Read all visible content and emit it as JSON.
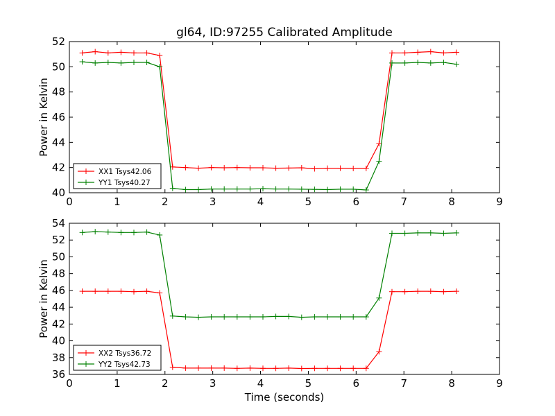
{
  "title": "gl64, ID:97255 Calibrated Amplitude",
  "chart_data": [
    {
      "type": "line",
      "title": "gl64, ID:97255 Calibrated Amplitude",
      "xlabel": "",
      "ylabel": "Power in Kelvin",
      "xlim": [
        0,
        9
      ],
      "ylim": [
        40,
        52
      ],
      "xticks": [
        "0",
        "1",
        "2",
        "3",
        "4",
        "5",
        "6",
        "7",
        "8",
        "9"
      ],
      "yticks": [
        "40",
        "42",
        "44",
        "46",
        "48",
        "50",
        "52"
      ],
      "grid": false,
      "legend_position": "lower-left",
      "x": [
        0.27,
        0.54,
        0.81,
        1.08,
        1.35,
        1.62,
        1.89,
        2.16,
        2.43,
        2.7,
        2.97,
        3.24,
        3.51,
        3.78,
        4.05,
        4.32,
        4.59,
        4.86,
        5.13,
        5.4,
        5.67,
        5.94,
        6.21,
        6.48,
        6.75,
        7.02,
        7.29,
        7.56,
        7.83,
        8.1
      ],
      "series": [
        {
          "name": "XX1 Tsys42.06",
          "color": "#ff0000",
          "values": [
            51.1,
            51.2,
            51.1,
            51.15,
            51.1,
            51.1,
            50.9,
            42.05,
            42.0,
            41.95,
            42.0,
            41.98,
            42.0,
            41.98,
            41.98,
            41.95,
            41.96,
            41.98,
            41.9,
            41.95,
            41.95,
            41.93,
            41.93,
            43.9,
            51.1,
            51.1,
            51.15,
            51.2,
            51.1,
            51.15
          ]
        },
        {
          "name": "YY1 Tsys40.27",
          "color": "#008000",
          "values": [
            50.4,
            50.3,
            50.35,
            50.3,
            50.35,
            50.35,
            50.0,
            40.35,
            40.25,
            40.25,
            40.3,
            40.3,
            40.3,
            40.3,
            40.32,
            40.3,
            40.3,
            40.28,
            40.27,
            40.25,
            40.28,
            40.28,
            40.22,
            42.5,
            50.3,
            50.3,
            50.35,
            50.3,
            50.35,
            50.2
          ]
        }
      ]
    },
    {
      "type": "line",
      "title": "",
      "xlabel": "Time (seconds)",
      "ylabel": "Power in Kelvin",
      "xlim": [
        0,
        9
      ],
      "ylim": [
        36,
        54
      ],
      "xticks": [
        "0",
        "1",
        "2",
        "3",
        "4",
        "5",
        "6",
        "7",
        "8",
        "9"
      ],
      "yticks": [
        "36",
        "38",
        "40",
        "42",
        "44",
        "46",
        "48",
        "50",
        "52",
        "54"
      ],
      "grid": false,
      "legend_position": "lower-left",
      "x": [
        0.27,
        0.54,
        0.81,
        1.08,
        1.35,
        1.62,
        1.89,
        2.16,
        2.43,
        2.7,
        2.97,
        3.24,
        3.51,
        3.78,
        4.05,
        4.32,
        4.59,
        4.86,
        5.13,
        5.4,
        5.67,
        5.94,
        6.21,
        6.48,
        6.75,
        7.02,
        7.29,
        7.56,
        7.83,
        8.1
      ],
      "series": [
        {
          "name": "XX2 Tsys36.72",
          "color": "#ff0000",
          "values": [
            45.9,
            45.9,
            45.9,
            45.9,
            45.85,
            45.9,
            45.7,
            36.85,
            36.75,
            36.75,
            36.75,
            36.75,
            36.72,
            36.75,
            36.72,
            36.72,
            36.75,
            36.7,
            36.72,
            36.72,
            36.72,
            36.72,
            36.72,
            38.7,
            45.85,
            45.85,
            45.9,
            45.9,
            45.85,
            45.9
          ]
        },
        {
          "name": "YY2 Tsys42.73",
          "color": "#008000",
          "values": [
            52.9,
            53.0,
            52.95,
            52.9,
            52.9,
            52.95,
            52.6,
            42.95,
            42.85,
            42.8,
            42.85,
            42.85,
            42.85,
            42.85,
            42.85,
            42.9,
            42.9,
            42.8,
            42.85,
            42.85,
            42.85,
            42.85,
            42.85,
            45.1,
            52.8,
            52.8,
            52.85,
            52.85,
            52.8,
            52.85
          ]
        }
      ]
    }
  ]
}
